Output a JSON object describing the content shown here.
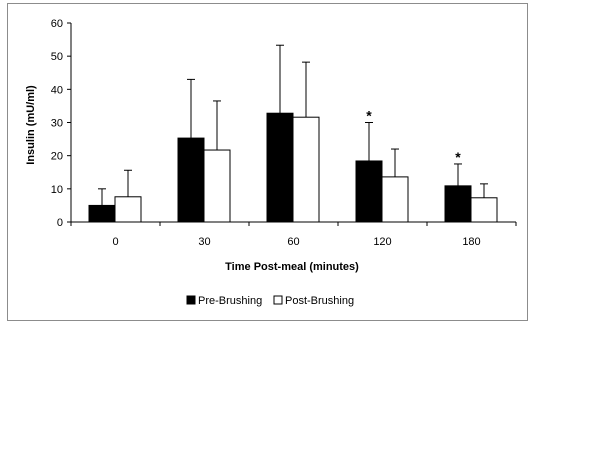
{
  "chart_data": {
    "type": "bar",
    "title": "",
    "xlabel": "Time Post-meal (minutes)",
    "ylabel": "Insulin (mU/ml)",
    "ylim": [
      0,
      60
    ],
    "yticks": [
      0,
      10,
      20,
      30,
      40,
      50,
      60
    ],
    "categories": [
      "0",
      "30",
      "60",
      "120",
      "180"
    ],
    "series": [
      {
        "name": "Pre-Brushing",
        "color": "#000000",
        "values": [
          5,
          25.3,
          32.8,
          18.4,
          10.9
        ],
        "error": [
          5,
          17.7,
          20.5,
          11.6,
          6.6
        ]
      },
      {
        "name": "Post-Brushing",
        "color": "#ffffff",
        "values": [
          7.6,
          21.7,
          31.6,
          13.6,
          7.3
        ],
        "error": [
          8,
          14.8,
          16.6,
          8.4,
          4.2
        ]
      }
    ],
    "annotations": [
      {
        "category": "120",
        "text": "*"
      },
      {
        "category": "180",
        "text": "*"
      }
    ],
    "legend_position": "bottom",
    "grid": false
  }
}
